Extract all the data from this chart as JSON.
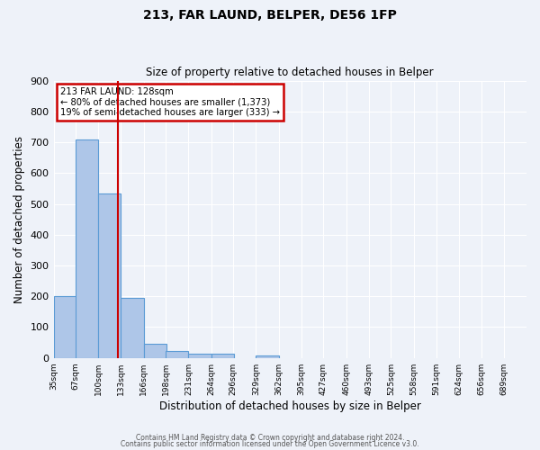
{
  "title": "213, FAR LAUND, BELPER, DE56 1FP",
  "subtitle": "Size of property relative to detached houses in Belper",
  "xlabel": "Distribution of detached houses by size in Belper",
  "ylabel": "Number of detached properties",
  "bar_left_edges": [
    35,
    67,
    100,
    133,
    166,
    198,
    231,
    264,
    296,
    329,
    362,
    395,
    427,
    460,
    493,
    525,
    558,
    591,
    624,
    656
  ],
  "bar_heights": [
    200,
    710,
    535,
    195,
    47,
    22,
    15,
    14,
    0,
    8,
    0,
    0,
    0,
    0,
    0,
    0,
    0,
    0,
    0,
    0
  ],
  "bin_width": 33,
  "tick_positions": [
    35,
    67,
    100,
    133,
    166,
    198,
    231,
    264,
    296,
    329,
    362,
    395,
    427,
    460,
    493,
    525,
    558,
    591,
    624,
    656,
    689
  ],
  "tick_labels": [
    "35sqm",
    "67sqm",
    "100sqm",
    "133sqm",
    "166sqm",
    "198sqm",
    "231sqm",
    "264sqm",
    "296sqm",
    "329sqm",
    "362sqm",
    "395sqm",
    "427sqm",
    "460sqm",
    "493sqm",
    "525sqm",
    "558sqm",
    "591sqm",
    "624sqm",
    "656sqm",
    "689sqm"
  ],
  "ylim": [
    0,
    900
  ],
  "yticks": [
    0,
    100,
    200,
    300,
    400,
    500,
    600,
    700,
    800,
    900
  ],
  "xlim": [
    35,
    722
  ],
  "bar_color": "#aec6e8",
  "bar_edge_color": "#5b9bd5",
  "vline_x": 128,
  "vline_color": "#cc0000",
  "annotation_line1": "213 FAR LAUND: 128sqm",
  "annotation_line2": "← 80% of detached houses are smaller (1,373)",
  "annotation_line3": "19% of semi-detached houses are larger (333) →",
  "annotation_box_color": "#cc0000",
  "background_color": "#eef2f9",
  "grid_color": "#d8dce8",
  "footer_line1": "Contains HM Land Registry data © Crown copyright and database right 2024.",
  "footer_line2": "Contains public sector information licensed under the Open Government Licence v3.0."
}
